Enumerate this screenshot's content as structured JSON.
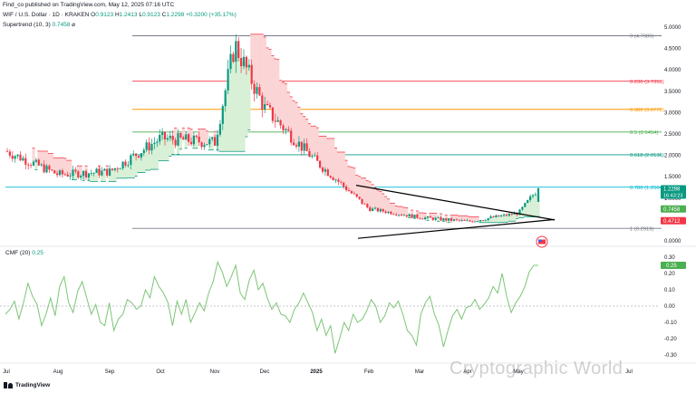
{
  "header": {
    "published": "Find_co published on TradingView.com, May 12, 2025 07:16 UTC",
    "symbol": "WIF / U.S. Dollar · 1D · KRAKEN",
    "o_label": "O",
    "o_value": "0.9123",
    "h_label": "H",
    "h_value": "1.2413",
    "l_label": "L",
    "l_value": "0.9123",
    "c_label": "C",
    "c_value": "1.2298",
    "change": "+0.3200 (+35.17%)",
    "supertrend_label": "Supertrend (10, 3)",
    "supertrend_value": "0.7458",
    "supertrend_suffix": "⌀"
  },
  "cmf_header": {
    "label": "CMF (20)",
    "value": "0.25"
  },
  "footer": {
    "brand": "TradingView",
    "watermark": "Cryptographic World"
  },
  "colors": {
    "up": "#089981",
    "down": "#f23645",
    "st_up_fill": "#d8f0d6",
    "st_down_fill": "#fbd5d5",
    "cmf": "#7cc576",
    "fib_0": "#787b86",
    "fib_236": "#f23645",
    "fib_382": "#ff9800",
    "fib_5": "#4caf50",
    "fib_618": "#089981",
    "fib_786": "#00bcd4",
    "fib_1": "#787b86"
  },
  "chart_data": [
    {
      "type": "candlestick",
      "title": "WIF / U.S. Dollar · 1D · KRAKEN",
      "x_ticks": [
        "Jul",
        "Aug",
        "Sep",
        "Oct",
        "Nov",
        "Dec",
        "2025",
        "Feb",
        "Mar",
        "Apr",
        "May",
        "Jul"
      ],
      "y_ticks": [
        0.0,
        0.5,
        1.0,
        1.5,
        2.0,
        2.5,
        3.0,
        3.5,
        4.0,
        4.5,
        5.0
      ],
      "ylim": [
        -0.1,
        5.1
      ],
      "monthly_close_path": [
        {
          "x": "Jul",
          "y": 2.1
        },
        {
          "x": "Aug",
          "y": 1.55
        },
        {
          "x": "Sep",
          "y": 1.62
        },
        {
          "x": "Oct",
          "y": 2.4
        },
        {
          "x": "Nov",
          "y": 2.3
        },
        {
          "x": "Nov",
          "y": 4.6
        },
        {
          "x": "Dec",
          "y": 3.1
        },
        {
          "x": "2025",
          "y": 1.85
        },
        {
          "x": "Feb",
          "y": 0.75
        },
        {
          "x": "Mar",
          "y": 0.55
        },
        {
          "x": "Apr",
          "y": 0.45
        },
        {
          "x": "May",
          "y": 0.65
        },
        {
          "x": "May",
          "y": 1.2298
        }
      ],
      "fib_levels": [
        {
          "ratio_label": "0",
          "label": "0 (4.7989)",
          "value": 4.7989
        },
        {
          "ratio_label": "0.236",
          "label": "0.236 (3.7353)",
          "value": 3.7353
        },
        {
          "ratio_label": "0.382",
          "label": "0.382 (3.0772)",
          "value": 3.0772
        },
        {
          "ratio_label": "0.5",
          "label": "0.5 (2.5454)",
          "value": 2.5454
        },
        {
          "ratio_label": "0.618",
          "label": "0.618 (2.0136)",
          "value": 2.0136
        },
        {
          "ratio_label": "0.786",
          "label": "0.786 (1.2564)",
          "value": 1.2564
        },
        {
          "ratio_label": "1",
          "label": "1 (0.2919)",
          "value": 0.2919
        }
      ],
      "price_tags": [
        {
          "name": "last-price",
          "value": "1.2298",
          "sub": "16:43:23",
          "color": "#089981"
        },
        {
          "name": "supertrend",
          "value": "0.7458",
          "color": "#4caf50"
        },
        {
          "name": "low-tag",
          "value": "0.4712",
          "color": "#f23645"
        }
      ]
    },
    {
      "type": "line",
      "title": "CMF (20)",
      "y_ticks": [
        -0.3,
        -0.2,
        -0.1,
        0.0,
        0.1,
        0.2,
        0.3
      ],
      "ylim": [
        -0.31,
        0.31
      ],
      "last_value": "0.25",
      "series": [
        {
          "values": [
            -0.05,
            -0.02,
            0.03,
            -0.08,
            0.02,
            0.14,
            0.06,
            0.01,
            -0.12,
            -0.05,
            0.05,
            -0.06,
            0.12,
            0.18,
            0.02,
            -0.04,
            0.09,
            0.15,
            0.05,
            -0.05,
            0.01,
            -0.1,
            -0.12,
            0.02,
            -0.15,
            -0.08,
            -0.05,
            0.04,
            0.02,
            -0.02,
            0.0,
            0.1,
            0.05,
            0.18,
            0.12,
            0.08,
            0.02,
            -0.12,
            0.03,
            -0.05,
            0.04,
            -0.1,
            -0.04,
            0.02,
            -0.03,
            0.08,
            0.15,
            0.27,
            0.21,
            0.12,
            0.18,
            0.25,
            0.08,
            0.04,
            0.16,
            0.22,
            0.1,
            0.14,
            0.05,
            -0.02,
            0.02,
            -0.05,
            -0.06,
            -0.1,
            -0.02,
            0.02,
            0.08,
            0.02,
            -0.04,
            -0.15,
            -0.08,
            -0.18,
            -0.12,
            -0.29,
            -0.2,
            -0.1,
            -0.15,
            -0.05,
            -0.1,
            -0.08,
            -0.03,
            0.04,
            0.0,
            -0.1,
            -0.06,
            0.02,
            -0.01,
            0.03,
            -0.05,
            -0.15,
            -0.18,
            -0.24,
            -0.05,
            0.02,
            0.06,
            -0.05,
            -0.12,
            -0.25,
            -0.15,
            -0.06,
            -0.02,
            -0.08,
            -0.01,
            0.0,
            0.04,
            -0.02,
            0.01,
            0.05,
            0.12,
            0.08,
            0.2,
            0.06,
            -0.04,
            0.02,
            0.06,
            0.12,
            0.21,
            0.25,
            0.25
          ]
        }
      ],
      "price_tags": [
        {
          "name": "cmf-last",
          "value": "0.25",
          "color": "#4caf50"
        }
      ]
    }
  ]
}
